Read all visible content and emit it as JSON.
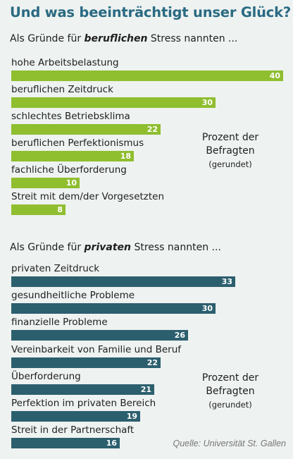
{
  "title": "Und was beeinträchtigt unser Glück?",
  "note": {
    "line1": "Prozent der",
    "line2": "Befragten",
    "line3": "(gerundet)"
  },
  "source": "Quelle: Universität St. Gallen",
  "chart_data": [
    {
      "type": "bar",
      "orientation": "horizontal",
      "subtitle_prefix": "Als Gründe für",
      "subtitle_emphasis": "beruflichen",
      "subtitle_suffix": "Stress nannten ...",
      "color": "#8fbe2f",
      "categories": [
        "hohe Arbeitsbelastung",
        "beruflichen Zeitdruck",
        "schlechtes Betriebsklima",
        "beruflichen Perfektionismus",
        "fachliche Überforderung",
        "Streit mit dem/der Vorgesetzten"
      ],
      "values": [
        40,
        30,
        22,
        18,
        10,
        8
      ]
    },
    {
      "type": "bar",
      "orientation": "horizontal",
      "subtitle_prefix": "Als Gründe für",
      "subtitle_emphasis": "privaten",
      "subtitle_suffix": "Stress nannten ...",
      "color": "#2c5f6e",
      "categories": [
        "privaten Zeitdruck",
        "gesundheitliche Probleme",
        "finanzielle Probleme",
        "Vereinbarkeit von Familie und Beruf",
        "Überforderung",
        "Perfektion im privaten Bereich",
        "Streit in der Partnerschaft"
      ],
      "values": [
        33,
        30,
        26,
        22,
        21,
        19,
        16
      ]
    }
  ]
}
